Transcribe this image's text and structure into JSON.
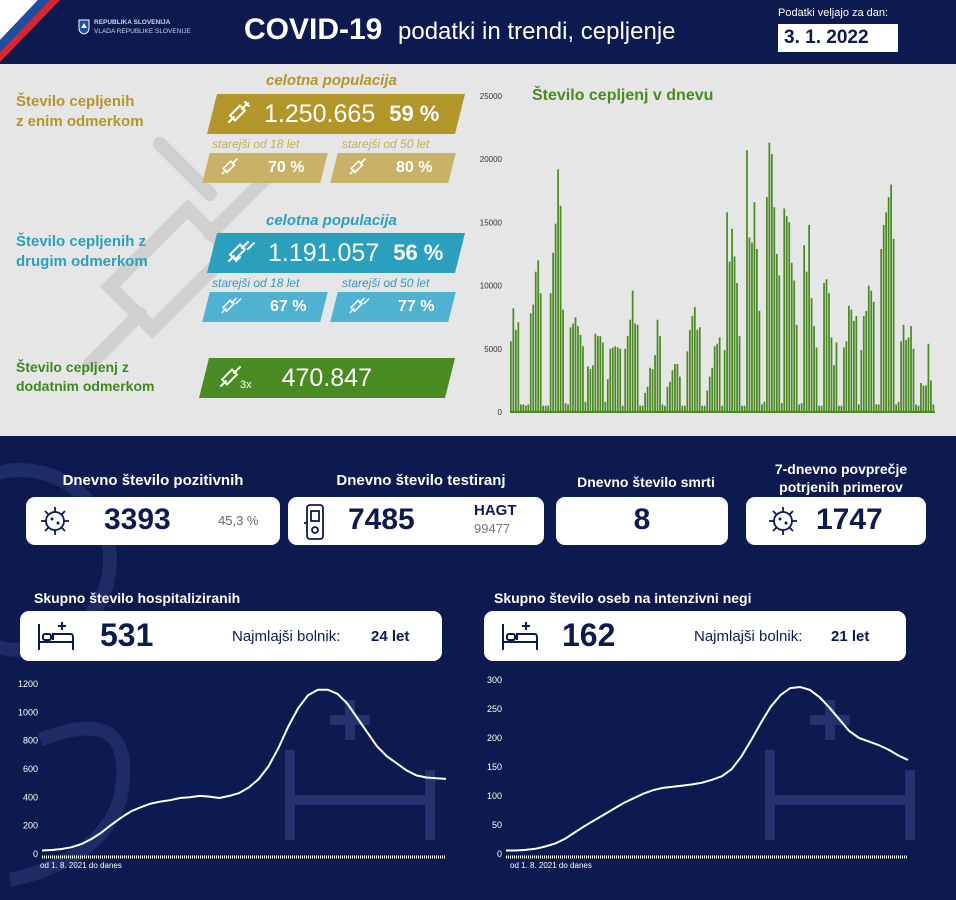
{
  "header": {
    "gov_line1": "REPUBLIKA SLOVENIJA",
    "gov_line2": "VLADA REPUBLIKE SLOVENIJE",
    "title_main": "COVID-19",
    "title_sub": "podatki in trendi, cepljenje",
    "date_label": "Podatki veljajo za dan:",
    "date": "3. 1. 2022"
  },
  "vaccination": {
    "first_dose": {
      "label_line1": "Število cepljenih",
      "label_line2": "z enim odmerkom",
      "population_label": "celotna populacija",
      "count": "1.250.665",
      "percent": "59 %",
      "over18_label": "starejši od 18 let",
      "over18_value": "70 %",
      "over50_label": "starejši od 50 let",
      "over50_value": "80 %",
      "color": "#b3962a"
    },
    "second_dose": {
      "label_line1": "Število cepljenih z",
      "label_line2": "drugim odmerkom",
      "population_label": "celotna populacija",
      "count": "1.191.057",
      "percent": "56 %",
      "over18_label": "starejši od 18 let",
      "over18_value": "67 %",
      "over50_label": "starejši od 50 let",
      "over50_value": "77 %",
      "color": "#2a9fbe"
    },
    "booster": {
      "label_line1": "Število cepljenj z",
      "label_line2": "dodatnim odmerkom",
      "multiplier": "3x",
      "count": "470.847",
      "color": "#4a8a22"
    }
  },
  "stats": {
    "positive": {
      "title": "Dnevno število pozitivnih",
      "value": "3393",
      "percent": "45,3 %"
    },
    "tests": {
      "title": "Dnevno število testiranj",
      "value": "7485",
      "hagt_label": "HAGT",
      "hagt_value": "99477"
    },
    "deaths": {
      "title": "Dnevno število smrti",
      "value": "8"
    },
    "avg7": {
      "title_line1": "7-dnevno povprečje",
      "title_line2": "potrjenih primerov",
      "value": "1747"
    },
    "hospital": {
      "title": "Skupno število hospitaliziranih",
      "value": "531",
      "youngest_label": "Najmlajši bolnik:",
      "youngest_value": "24 let"
    },
    "icu": {
      "title": "Skupno število oseb na intenzivni negi",
      "value": "162",
      "youngest_label": "Najmlajši bolnik:",
      "youngest_value": "21 let"
    }
  },
  "colors": {
    "navy": "#0d1a4f",
    "bar_green": "#4a8a22",
    "panel_grey": "#e6e6e6"
  },
  "chart_data": [
    {
      "type": "bar",
      "title": "Število cepljenj v dnevu",
      "ylim": [
        0,
        25000
      ],
      "yticks": [
        "0",
        "5000",
        "10000",
        "15000",
        "20000",
        "25000"
      ],
      "values": [
        5600,
        8200,
        6500,
        7100,
        600,
        600,
        500,
        600,
        7800,
        8500,
        11100,
        12000,
        9400,
        500,
        500,
        500,
        9400,
        12600,
        14900,
        19200,
        16300,
        8100,
        700,
        600,
        6700,
        7000,
        7500,
        6800,
        6100,
        5200,
        800,
        3600,
        3400,
        3700,
        6200,
        6000,
        6000,
        5500,
        800,
        2600,
        5000,
        5100,
        5200,
        5100,
        5000,
        500,
        5000,
        6000,
        7300,
        9600,
        7000,
        6900,
        500,
        500,
        1500,
        2000,
        3500,
        3400,
        4500,
        7300,
        6000,
        600,
        500,
        2000,
        2400,
        3300,
        3800,
        3800,
        2800,
        500,
        500,
        4800,
        6500,
        7600,
        8300,
        6500,
        6700,
        500,
        500,
        1700,
        2800,
        3500,
        5200,
        5400,
        5900,
        500,
        4900,
        15800,
        11900,
        14500,
        12300,
        10200,
        6000,
        500,
        500,
        20700,
        13800,
        13400,
        16600,
        12900,
        8000,
        600,
        800,
        17000,
        21300,
        20400,
        16200,
        12500,
        10800,
        700,
        16100,
        15500,
        15000,
        11800,
        10400,
        6900,
        600,
        700,
        13200,
        11100,
        14800,
        9000,
        6800,
        5100,
        500,
        500,
        10200,
        10500,
        9400,
        5900,
        3700,
        5500,
        500,
        500,
        5100,
        5600,
        8400,
        8100,
        7200,
        7600,
        600,
        4900,
        7600,
        8000,
        10000,
        9600,
        8700,
        600,
        600,
        12900,
        14800,
        15800,
        17000,
        18000,
        13700,
        600,
        800,
        5600,
        6900,
        5700,
        5900,
        6800,
        5000,
        600,
        500,
        2300,
        2100,
        2100,
        5400,
        2500,
        600
      ],
      "color": "#4a8a22"
    },
    {
      "type": "area",
      "title": "Skupno število hospitaliziranih",
      "xlabel": "od 1. 8. 2021 do danes",
      "ylim": [
        0,
        1200
      ],
      "yticks": [
        "0",
        "200",
        "400",
        "600",
        "800",
        "1000",
        "1200"
      ],
      "values": [
        25,
        28,
        35,
        48,
        70,
        105,
        150,
        205,
        255,
        300,
        330,
        355,
        370,
        380,
        395,
        400,
        410,
        405,
        395,
        410,
        430,
        470,
        530,
        620,
        750,
        900,
        1030,
        1120,
        1160,
        1160,
        1130,
        1060,
        960,
        860,
        760,
        690,
        640,
        590,
        555,
        540,
        535,
        530
      ],
      "color": "#ffffff"
    },
    {
      "type": "area",
      "title": "Skupno število oseb na intenzivni negi",
      "xlabel": "od 1. 8. 2021 do danes",
      "ylim": [
        0,
        300
      ],
      "yticks": [
        "0",
        "50",
        "100",
        "150",
        "200",
        "250",
        "300"
      ],
      "values": [
        6,
        6,
        7,
        9,
        13,
        18,
        26,
        37,
        48,
        58,
        68,
        78,
        88,
        96,
        104,
        110,
        114,
        116,
        118,
        120,
        123,
        128,
        134,
        146,
        168,
        196,
        226,
        254,
        274,
        286,
        288,
        283,
        270,
        252,
        232,
        212,
        200,
        194,
        188,
        180,
        170,
        162
      ],
      "color": "#ffffff"
    }
  ]
}
